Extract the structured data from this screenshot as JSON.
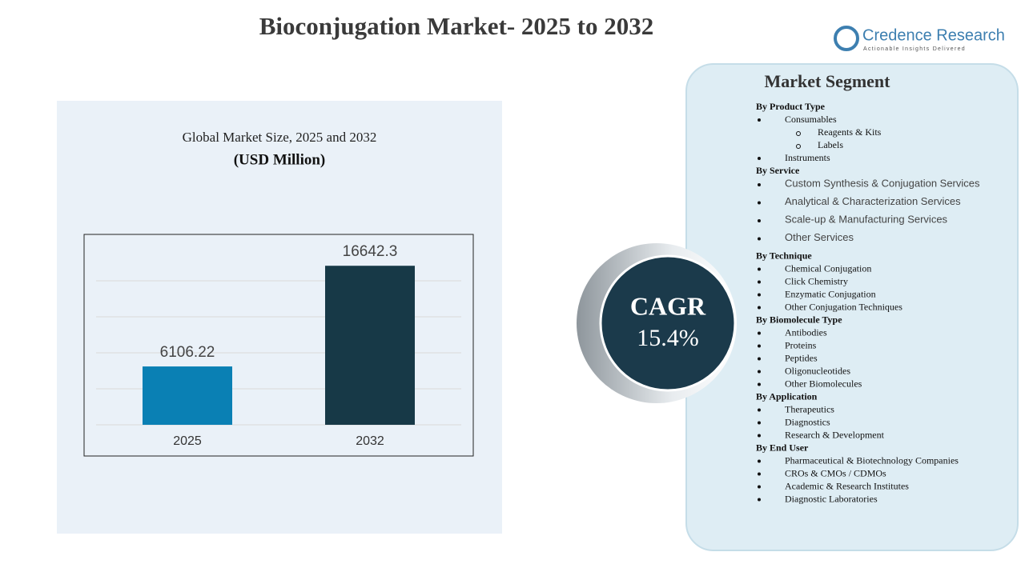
{
  "header": {
    "title": "Bioconjugation Market- 2025 to 2032"
  },
  "logo": {
    "name": "Credence Research",
    "tagline": "Actionable Insights Delivered"
  },
  "chart_data": {
    "type": "bar",
    "title": "Global Market Size, 2025 and 2032",
    "subtitle": "(USD Million)",
    "categories": [
      "2025",
      "2032"
    ],
    "values": [
      6106.22,
      16642.3
    ],
    "colors": [
      "#0a80b4",
      "#173947"
    ],
    "ylim": [
      0,
      18000
    ]
  },
  "cagr": {
    "label": "CAGR",
    "value": "15.4%"
  },
  "segments": {
    "title": "Market Segment",
    "groups": [
      {
        "heading": "By Product  Type",
        "items": [
          {
            "label": "Consumables",
            "sub": [
              "Reagents & Kits",
              "Labels"
            ]
          },
          {
            "label": "Instruments"
          }
        ]
      },
      {
        "heading": "By Service",
        "items": [
          {
            "label": "Custom Synthesis & Conjugation  Services"
          },
          {
            "label": "Analytical & Characterization  Services"
          },
          {
            "label": "Scale-up  & Manufacturing  Services"
          },
          {
            "label": "Other Services"
          }
        ]
      },
      {
        "heading": "By Technique",
        "items": [
          {
            "label": "Chemical  Conjugation"
          },
          {
            "label": "Click  Chemistry"
          },
          {
            "label": "Enzymatic  Conjugation"
          },
          {
            "label": "Other Conjugation Techniques"
          }
        ]
      },
      {
        "heading": "By Biomolecule Type",
        "items": [
          {
            "label": "Antibodies"
          },
          {
            "label": "Proteins"
          },
          {
            "label": "Peptides"
          },
          {
            "label": "Oligonucleotides"
          },
          {
            "label": "Other Biomolecules"
          }
        ]
      },
      {
        "heading": "By Application",
        "items": [
          {
            "label": "Therapeutics"
          },
          {
            "label": "Diagnostics"
          },
          {
            "label": "Research & Development"
          }
        ]
      },
      {
        "heading": "By End  User",
        "items": [
          {
            "label": "Pharmaceutical  & Biotechnology Companies"
          },
          {
            "label": "CROs  & CMOs / CDMOs"
          },
          {
            "label": "Academic  & Research Institutes"
          },
          {
            "label": "Diagnostic Laboratories"
          }
        ]
      }
    ]
  }
}
